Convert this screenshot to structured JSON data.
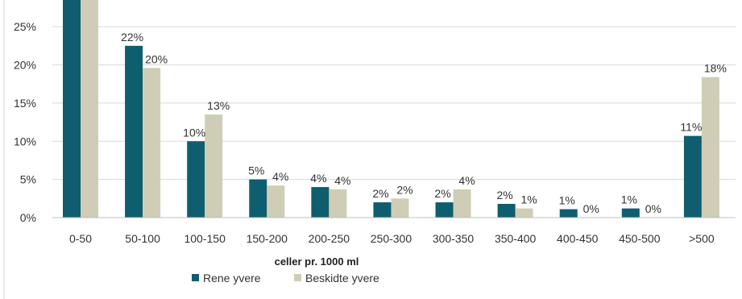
{
  "chart_data": {
    "type": "bar",
    "title": "",
    "xlabel": "celler pr. 1000 ml",
    "ylabel": "",
    "ylim": [
      0,
      28.5
    ],
    "yticks": [
      0,
      5,
      10,
      15,
      20,
      25
    ],
    "ytick_labels": [
      "0%",
      "5%",
      "10%",
      "15%",
      "20%",
      "25%"
    ],
    "grid": true,
    "legend_position": "bottom-left",
    "categories": [
      "0-50",
      "50-100",
      "100-150",
      "150-200",
      "200-250",
      "250-300",
      "300-350",
      "350-400",
      "400-450",
      "450-500",
      ">500"
    ],
    "series": [
      {
        "name": "Rene yvere",
        "color": "#0e5e6f",
        "values": [
          30,
          22.5,
          10,
          5,
          4,
          2,
          2,
          1.8,
          1.1,
          1.2,
          10.7
        ],
        "labels": [
          "",
          "22%",
          "10%",
          "5%",
          "4%",
          "2%",
          "2%",
          "2%",
          "1%",
          "1%",
          "11%"
        ]
      },
      {
        "name": "Beskidte yvere",
        "color": "#cfcdb5",
        "values": [
          30,
          19.6,
          13.5,
          4.2,
          3.7,
          2.5,
          3.7,
          1.2,
          0,
          0,
          18.4
        ],
        "labels": [
          "",
          "20%",
          "13%",
          "4%",
          "4%",
          "2%",
          "4%",
          "1%",
          "0%",
          "0%",
          "18%"
        ]
      }
    ]
  }
}
